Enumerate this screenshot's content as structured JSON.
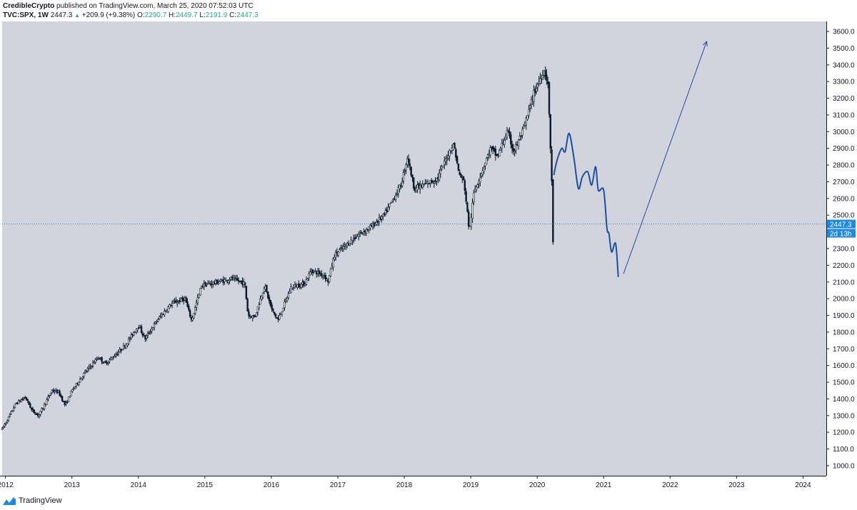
{
  "header": {
    "author": "CredibleCrypto",
    "published_text": "published on TradingView.com, March 25, 2020 07:52:03 UTC",
    "symbol": "TVC:SPX, 1W",
    "last": "2447.3",
    "change": "+209.9 (+9.38%)",
    "open_label": "O:",
    "open": "2290.7",
    "high_label": "H:",
    "high": "2449.7",
    "low_label": "L:",
    "low": "2191.9",
    "close_label": "C:",
    "close": "2447.3"
  },
  "footer": {
    "brand": "TradingView"
  },
  "chart_data": {
    "type": "candlestick",
    "ylim": [
      940,
      3660
    ],
    "y_ticks": [
      "1000.0",
      "1100.0",
      "1200.0",
      "1300.0",
      "1400.0",
      "1500.0",
      "1600.0",
      "1700.0",
      "1800.0",
      "1900.0",
      "2000.0",
      "2100.0",
      "2200.0",
      "2300.0",
      "2400.0",
      "2500.0",
      "2600.0",
      "2700.0",
      "2800.0",
      "2900.0",
      "3000.0",
      "3100.0",
      "3200.0",
      "3300.0",
      "3400.0",
      "3500.0",
      "3600.0"
    ],
    "x_ticks": [
      {
        "label": "2012",
        "t": 2012.0
      },
      {
        "label": "2013",
        "t": 2013.0
      },
      {
        "label": "2014",
        "t": 2014.0
      },
      {
        "label": "2015",
        "t": 2015.0
      },
      {
        "label": "2016",
        "t": 2016.0
      },
      {
        "label": "2017",
        "t": 2017.0
      },
      {
        "label": "2018",
        "t": 2018.0
      },
      {
        "label": "2019",
        "t": 2019.0
      },
      {
        "label": "2020",
        "t": 2020.0
      },
      {
        "label": "2021",
        "t": 2021.0
      },
      {
        "label": "2022",
        "t": 2022.0
      },
      {
        "label": "2023",
        "t": 2023.0
      },
      {
        "label": "2024",
        "t": 2024.0
      }
    ],
    "xlim": [
      2011.95,
      2024.35
    ],
    "price_line": 2447.3,
    "price_label": "2447.3",
    "countdown_label": "2d 13h",
    "anchors": [
      [
        2011.95,
        1220
      ],
      [
        2012.05,
        1290
      ],
      [
        2012.15,
        1370
      ],
      [
        2012.3,
        1410
      ],
      [
        2012.4,
        1330
      ],
      [
        2012.5,
        1300
      ],
      [
        2012.7,
        1450
      ],
      [
        2012.8,
        1440
      ],
      [
        2012.9,
        1360
      ],
      [
        2013.0,
        1450
      ],
      [
        2013.2,
        1560
      ],
      [
        2013.4,
        1650
      ],
      [
        2013.5,
        1610
      ],
      [
        2013.7,
        1680
      ],
      [
        2013.8,
        1720
      ],
      [
        2014.0,
        1840
      ],
      [
        2014.1,
        1760
      ],
      [
        2014.3,
        1880
      ],
      [
        2014.5,
        1970
      ],
      [
        2014.7,
        2000
      ],
      [
        2014.8,
        1870
      ],
      [
        2014.95,
        2080
      ],
      [
        2015.2,
        2100
      ],
      [
        2015.4,
        2120
      ],
      [
        2015.6,
        2090
      ],
      [
        2015.65,
        1900
      ],
      [
        2015.75,
        1890
      ],
      [
        2015.9,
        2080
      ],
      [
        2016.0,
        1940
      ],
      [
        2016.1,
        1870
      ],
      [
        2016.3,
        2070
      ],
      [
        2016.5,
        2090
      ],
      [
        2016.6,
        2170
      ],
      [
        2016.8,
        2140
      ],
      [
        2016.85,
        2100
      ],
      [
        2016.95,
        2260
      ],
      [
        2017.3,
        2380
      ],
      [
        2017.5,
        2430
      ],
      [
        2017.7,
        2500
      ],
      [
        2017.95,
        2680
      ],
      [
        2018.05,
        2850
      ],
      [
        2018.15,
        2660
      ],
      [
        2018.3,
        2680
      ],
      [
        2018.5,
        2720
      ],
      [
        2018.7,
        2900
      ],
      [
        2018.75,
        2920
      ],
      [
        2018.82,
        2750
      ],
      [
        2018.9,
        2700
      ],
      [
        2018.98,
        2400
      ],
      [
        2019.05,
        2640
      ],
      [
        2019.3,
        2900
      ],
      [
        2019.4,
        2850
      ],
      [
        2019.55,
        3000
      ],
      [
        2019.65,
        2880
      ],
      [
        2019.8,
        3020
      ],
      [
        2019.95,
        3230
      ],
      [
        2020.1,
        3370
      ],
      [
        2020.16,
        3300
      ],
      [
        2020.2,
        2900
      ],
      [
        2020.22,
        2700
      ],
      [
        2020.24,
        2300
      ]
    ],
    "series": [
      {
        "name": "",
        "color": "#1e4e9e",
        "points": [
          [
            2020.25,
            2740
          ],
          [
            2020.3,
            2830
          ],
          [
            2020.37,
            2900
          ],
          [
            2020.42,
            2880
          ],
          [
            2020.48,
            2990
          ],
          [
            2020.55,
            2850
          ],
          [
            2020.62,
            2660
          ],
          [
            2020.68,
            2730
          ],
          [
            2020.76,
            2760
          ],
          [
            2020.82,
            2680
          ],
          [
            2020.88,
            2790
          ],
          [
            2020.92,
            2650
          ],
          [
            2021.0,
            2650
          ],
          [
            2021.05,
            2420
          ],
          [
            2021.08,
            2390
          ],
          [
            2021.12,
            2280
          ],
          [
            2021.18,
            2330
          ],
          [
            2021.22,
            2130
          ]
        ]
      }
    ],
    "projection_arrow": {
      "from": [
        2021.3,
        2150
      ],
      "to": [
        2022.55,
        3540
      ],
      "color": "#1e4e9e"
    },
    "colors": {
      "background": "#d2d4dd",
      "candle": "#0b1b2b",
      "price_line": "#1e88c7",
      "price_badge": "#1e88e5",
      "grid": "#d2d4dd"
    }
  }
}
